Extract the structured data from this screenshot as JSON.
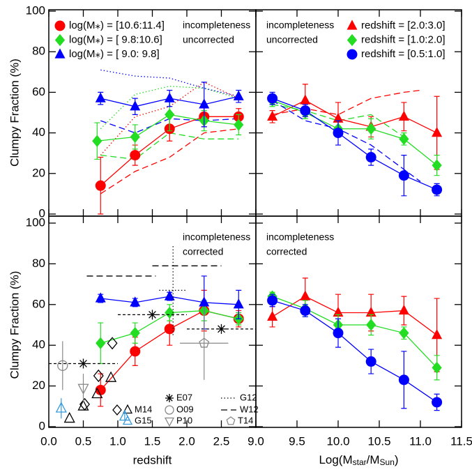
{
  "chart_data": [
    {
      "type": "scatter",
      "ylabel": "Clumpy Fraction (%)",
      "xlim": [
        0,
        3
      ],
      "ylim": [
        0,
        100
      ],
      "xticks": [
        0,
        0.5,
        1,
        1.5,
        2,
        2.5,
        3
      ],
      "yticks": [
        0,
        20,
        40,
        60,
        80,
        100
      ],
      "show_xtick_labels": false,
      "show_ytick_labels": true,
      "legend": "upper left",
      "annotations": [
        "incompleteness",
        "uncorrected"
      ],
      "annotation_corner": "upper right",
      "series": [
        {
          "name": "log(M⁎) = [10.6:11.4]",
          "color": "#ff0000",
          "marker": "circle",
          "x": [
            0.75,
            1.25,
            1.75,
            2.25,
            2.75
          ],
          "values": [
            14,
            29,
            42,
            48,
            48
          ],
          "yerr": [
            14,
            5,
            6,
            5,
            4
          ]
        },
        {
          "name": "log(M⁎) = [ 9.8:10.6]",
          "color": "#22dd22",
          "marker": "diamond",
          "x": [
            0.7,
            1.25,
            1.75,
            2.25,
            2.75
          ],
          "values": [
            36,
            38,
            49,
            46,
            44
          ],
          "yerr": [
            9,
            6,
            8,
            5,
            5
          ]
        },
        {
          "name": "log(M⁎) = [ 9.0: 9.8]",
          "color": "#0000ff",
          "marker": "triangle",
          "x": [
            0.75,
            1.25,
            1.75,
            2.25,
            2.75
          ],
          "values": [
            57,
            53,
            57,
            54,
            58
          ],
          "yerr": [
            3,
            4,
            4,
            11,
            3
          ]
        }
      ],
      "model_lines": [
        {
          "color": "#ff0000",
          "dash": "dashed",
          "x": [
            0.75,
            1.25,
            1.75,
            2.25,
            2.75
          ],
          "values": [
            10,
            21,
            28,
            40,
            42
          ]
        },
        {
          "color": "#ff0000",
          "dash": "dotted",
          "x": [
            0.75,
            1.25,
            1.75,
            2.25,
            2.75
          ],
          "values": [
            29,
            48,
            53,
            65,
            57
          ]
        },
        {
          "color": "#22dd22",
          "dash": "dashed",
          "x": [
            0.75,
            1.25,
            1.75,
            2.25,
            2.75
          ],
          "values": [
            29,
            27,
            40,
            37,
            37
          ]
        },
        {
          "color": "#22dd22",
          "dash": "dotted",
          "x": [
            0.75,
            1.25,
            1.75,
            2.25,
            2.75
          ],
          "values": [
            42,
            59,
            63,
            62,
            57
          ]
        },
        {
          "color": "#0000ff",
          "dash": "dashed",
          "x": [
            0.75,
            1.25,
            1.75,
            2.25,
            2.75
          ],
          "values": [
            46,
            40,
            47,
            46,
            47
          ]
        },
        {
          "color": "#0000ff",
          "dash": "dotted",
          "x": [
            0.75,
            1.25,
            1.75,
            2.25,
            2.75
          ],
          "values": [
            71,
            68,
            67,
            62,
            58
          ]
        }
      ]
    },
    {
      "type": "scatter",
      "xlim": [
        9,
        11.5
      ],
      "ylim": [
        0,
        100
      ],
      "xticks": [
        9,
        9.5,
        10,
        10.5,
        11,
        11.5
      ],
      "yticks": [
        0,
        20,
        40,
        60,
        80,
        100
      ],
      "show_xtick_labels": false,
      "show_ytick_labels": false,
      "legend": "upper right",
      "annotations": [
        "incompleteness",
        "uncorrected"
      ],
      "annotation_corner": "upper left",
      "series": [
        {
          "name": "redshift = [2.0:3.0]",
          "color": "#ff0000",
          "marker": "triangle",
          "x": [
            9.2,
            9.6,
            10.0,
            10.4,
            10.8,
            11.2
          ],
          "values": [
            48,
            56,
            47,
            43,
            48,
            40
          ],
          "yerr": [
            3,
            8,
            8,
            5,
            7,
            18
          ]
        },
        {
          "name": "redshift = [1.0:2.0]",
          "color": "#22dd22",
          "marker": "diamond",
          "x": [
            9.2,
            9.6,
            10.0,
            10.4,
            10.8,
            11.2
          ],
          "values": [
            56,
            50,
            42,
            42,
            37,
            24
          ],
          "yerr": [
            3,
            3,
            4,
            5,
            3,
            5
          ]
        },
        {
          "name": "redshift = [0.5:1.0]",
          "color": "#0000ff",
          "marker": "circle",
          "x": [
            9.2,
            9.6,
            10.0,
            10.4,
            10.8,
            11.2
          ],
          "values": [
            57,
            51,
            40,
            28,
            19,
            12
          ],
          "yerr": [
            3,
            3,
            6,
            4,
            10,
            3
          ]
        }
      ],
      "model_lines": [
        {
          "color": "#ff0000",
          "dash": "dashed",
          "x": [
            9.2,
            9.6,
            10.0,
            10.4,
            10.8,
            11.0
          ],
          "values": [
            49,
            52,
            49,
            57,
            60,
            61
          ]
        },
        {
          "color": "#22dd22",
          "dash": "dashed",
          "x": [
            9.2,
            9.6,
            10.0,
            10.4,
            10.8
          ],
          "values": [
            54,
            51,
            46,
            49,
            38
          ]
        },
        {
          "color": "#0000ff",
          "dash": "dashed",
          "x": [
            9.2,
            9.6,
            10.0,
            10.4,
            10.8,
            11.0
          ],
          "values": [
            56,
            46,
            42,
            34,
            22,
            16
          ]
        }
      ]
    },
    {
      "type": "scatter",
      "ylabel": "Clumpy Fraction (%)",
      "xlabel": "redshift",
      "xlim": [
        0,
        3
      ],
      "ylim": [
        0,
        100
      ],
      "xticks": [
        {
          "value": 0,
          "label": "0.0"
        },
        {
          "value": 0.5,
          "label": "0.5"
        },
        {
          "value": 1,
          "label": "1.0"
        },
        {
          "value": 1.5,
          "label": "1.5"
        },
        {
          "value": 2,
          "label": "2.0"
        },
        {
          "value": 2.5,
          "label": "2.5"
        }
      ],
      "yticks": [
        0,
        20,
        40,
        60,
        80,
        100
      ],
      "show_xtick_labels": true,
      "show_ytick_labels": true,
      "annotations": [
        "incompleteness",
        "corrected"
      ],
      "annotation_corner": "upper right",
      "series": [
        {
          "color": "#ff0000",
          "marker": "circle",
          "x": [
            0.75,
            1.25,
            1.75,
            2.25,
            2.75
          ],
          "values": [
            18,
            37,
            48,
            57,
            53
          ],
          "yerr": [
            8,
            7,
            8,
            10,
            4
          ]
        },
        {
          "color": "#22dd22",
          "marker": "diamond",
          "x": [
            0.75,
            1.25,
            1.75,
            2.25,
            2.75
          ],
          "values": [
            41,
            46,
            56,
            57,
            53
          ],
          "yerr": [
            10,
            5,
            4,
            5,
            3
          ]
        },
        {
          "color": "#0000ff",
          "marker": "triangle",
          "x": [
            0.75,
            1.25,
            1.75,
            2.25,
            2.75
          ],
          "values": [
            63,
            61,
            64,
            61,
            60
          ],
          "yerr": [
            2,
            2,
            2,
            13,
            7
          ]
        }
      ],
      "references": [
        {
          "name": "M14",
          "color": "#000000",
          "marker": "triangle-open",
          "x": [
            0.3,
            0.5,
            0.7,
            0.9
          ],
          "values": [
            4,
            10,
            16,
            24
          ]
        },
        {
          "color": "#000000",
          "marker": "diamond-open",
          "x": [
            0.52,
            0.72,
            0.92
          ],
          "values": [
            11,
            25,
            41
          ]
        },
        {
          "name": "G15",
          "color": "#3399dd",
          "marker": "triangle-open",
          "x": [
            0.18,
            1.1
          ],
          "values": [
            9,
            5
          ],
          "yerr": [
            5,
            2
          ]
        },
        {
          "name": "E07",
          "color": "#000000",
          "marker": "asterisk",
          "dash": "short-dashed",
          "x": [
            0.5,
            1.5,
            2.5
          ],
          "values": [
            31,
            55,
            48
          ],
          "xerr": [
            0.5,
            0.5,
            0.5
          ]
        },
        {
          "name": "O09",
          "color": "#888888",
          "marker": "circle-open",
          "x": [
            0.2
          ],
          "values": [
            30
          ],
          "yerr": [
            12
          ]
        },
        {
          "name": "P10",
          "color": "#888888",
          "marker": "triangle-down-open",
          "x": [
            0.5
          ],
          "values": [
            19
          ],
          "yerr": [
            7
          ]
        },
        {
          "name": "G12",
          "color": "#000000",
          "dash": "dotted",
          "x": [
            1.8
          ],
          "values": [
            67
          ],
          "xerr": [
            0.2
          ],
          "yerr": [
            22
          ]
        },
        {
          "name": "W12",
          "color": "#000000",
          "dash": "dashed",
          "x": [
            1.05,
            2.0
          ],
          "values": [
            74,
            79
          ],
          "xerr": [
            0.5,
            0.5
          ]
        },
        {
          "name": "T14",
          "color": "#888888",
          "marker": "pentagon-open",
          "x": [
            2.25
          ],
          "values": [
            41
          ],
          "xerr": [
            0.35
          ],
          "yerr": [
            18
          ]
        }
      ]
    },
    {
      "type": "scatter",
      "xlabel_parts": [
        "Log(M",
        "star",
        "/M",
        "Sun",
        ")"
      ],
      "xlim": [
        9,
        11.5
      ],
      "ylim": [
        0,
        100
      ],
      "xticks": [
        {
          "value": 9,
          "label": "9.0"
        },
        {
          "value": 9.5,
          "label": "9.5"
        },
        {
          "value": 10,
          "label": "10.0"
        },
        {
          "value": 10.5,
          "label": "10.5"
        },
        {
          "value": 11,
          "label": "11.0"
        },
        {
          "value": 11.5,
          "label": "11.5"
        }
      ],
      "yticks": [
        0,
        20,
        40,
        60,
        80,
        100
      ],
      "show_xtick_labels": true,
      "show_ytick_labels": false,
      "annotations": [
        "incompleteness",
        "corrected"
      ],
      "annotation_corner": "upper left",
      "series": [
        {
          "color": "#ff0000",
          "marker": "triangle",
          "x": [
            9.2,
            9.6,
            10.0,
            10.4,
            10.8,
            11.2
          ],
          "values": [
            54,
            64,
            56,
            56,
            57,
            45
          ],
          "yerr": [
            5,
            9,
            9,
            9,
            7,
            18
          ]
        },
        {
          "color": "#22dd22",
          "marker": "diamond",
          "x": [
            9.2,
            9.6,
            10.0,
            10.4,
            10.8,
            11.2
          ],
          "values": [
            64,
            58,
            50,
            50,
            46,
            29
          ],
          "yerr": [
            2,
            4,
            5,
            5,
            3,
            6
          ]
        },
        {
          "color": "#0000ff",
          "marker": "circle",
          "x": [
            9.2,
            9.6,
            10.0,
            10.4,
            10.8,
            11.2
          ],
          "values": [
            62,
            57,
            46,
            32,
            23,
            12
          ],
          "yerr": [
            3,
            3,
            7,
            6,
            14,
            4
          ]
        }
      ]
    }
  ]
}
